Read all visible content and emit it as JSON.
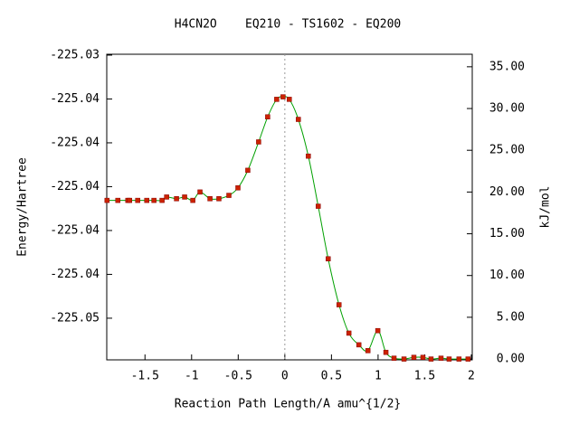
{
  "chart_data": {
    "type": "line",
    "title": "H4CN2O    EQ210 - TS1602 - EQ200",
    "xlabel": "Reaction Path Length/A amu^{1/2}",
    "ylabel": "Energy/Hartree",
    "y2label": "kJ/mol",
    "x": [
      -1.907,
      -1.791,
      -1.684,
      -1.665,
      -1.578,
      -1.481,
      -1.404,
      -1.317,
      -1.268,
      -1.162,
      -1.075,
      -0.987,
      -0.91,
      -0.803,
      -0.707,
      -0.6,
      -0.503,
      -0.397,
      -0.281,
      -0.184,
      -0.087,
      -0.019,
      0.048,
      0.145,
      0.252,
      0.358,
      0.465,
      0.581,
      0.687,
      0.794,
      0.891,
      0.997,
      1.084,
      1.171,
      1.278,
      1.384,
      1.481,
      1.568,
      1.675,
      1.762,
      1.868,
      1.965
    ],
    "series": [
      {
        "color": "#00a000",
        "marker_color": "#cc2200",
        "axis": "y2",
        "values": [
          19.0,
          19.0,
          19.0,
          19.0,
          19.0,
          19.0,
          19.0,
          19.0,
          19.4,
          19.2,
          19.4,
          19.0,
          20.0,
          19.2,
          19.2,
          19.6,
          20.5,
          22.6,
          26.0,
          29.0,
          31.1,
          31.4,
          31.1,
          28.7,
          24.3,
          18.3,
          12.0,
          6.5,
          3.1,
          1.7,
          1.0,
          3.4,
          0.8,
          0.1,
          0.0,
          0.2,
          0.2,
          0.0,
          0.1,
          0.0,
          0.0,
          0.0
        ]
      }
    ],
    "xlim": [
      -1.91,
      2.01
    ],
    "xticks": [
      -1.5,
      -1,
      -0.5,
      0,
      0.5,
      1,
      1.5,
      2
    ],
    "ylim": [
      -225.0471,
      -225.03316
    ],
    "yticks": [
      {
        "value": -225.0332,
        "label": "-225.03"
      },
      {
        "value": -225.0352,
        "label": "-225.04"
      },
      {
        "value": -225.0372,
        "label": "-225.04"
      },
      {
        "value": -225.0392,
        "label": "-225.04"
      },
      {
        "value": -225.0412,
        "label": "-225.04"
      },
      {
        "value": -225.0432,
        "label": "-225.04"
      },
      {
        "value": -225.0452,
        "label": "-225.05"
      }
    ],
    "y2lim": [
      -0.1,
      36.5
    ],
    "y2ticks": [
      {
        "value": 0,
        "label": "0.00"
      },
      {
        "value": 5,
        "label": "5.00"
      },
      {
        "value": 10,
        "label": "10.00"
      },
      {
        "value": 15,
        "label": "15.00"
      },
      {
        "value": 20,
        "label": "20.00"
      },
      {
        "value": 25,
        "label": "25.00"
      },
      {
        "value": 30,
        "label": "30.00"
      },
      {
        "value": 35,
        "label": "35.00"
      }
    ],
    "vline_x": 0
  }
}
